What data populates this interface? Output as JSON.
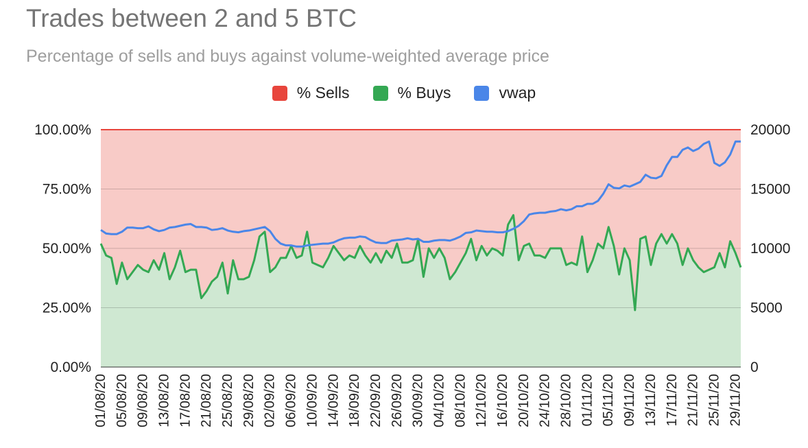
{
  "chart_data": {
    "type": "area",
    "title": "Trades between 2 and 5 BTC",
    "subtitle": "Percentage of sells and buys against volume-weighted average price",
    "legend": {
      "position": "top-center",
      "items": [
        {
          "name": "% Sells",
          "color": "#e8453c"
        },
        {
          "name": "% Buys",
          "color": "#34a853"
        },
        {
          "name": "vwap",
          "color": "#4a86e8"
        }
      ]
    },
    "left_axis": {
      "ylim": [
        0,
        100
      ],
      "ticks": [
        0,
        25,
        50,
        75,
        100
      ],
      "tick_labels": [
        "0.00%",
        "25.00%",
        "50.00%",
        "75.00%",
        "100.00%"
      ]
    },
    "right_axis": {
      "ylim": [
        0,
        20000
      ],
      "ticks": [
        0,
        5000,
        10000,
        15000,
        20000
      ],
      "tick_labels": [
        "0",
        "5000",
        "10000",
        "15000",
        "20000"
      ]
    },
    "grid": true,
    "x_tick_labels": [
      "01/08/20",
      "05/08/20",
      "09/08/20",
      "13/08/20",
      "17/08/20",
      "21/08/20",
      "25/08/20",
      "29/08/20",
      "02/09/20",
      "06/09/20",
      "10/09/20",
      "14/09/20",
      "18/09/20",
      "22/09/20",
      "26/09/20",
      "30/09/20",
      "04/10/20",
      "08/10/20",
      "12/10/20",
      "16/10/20",
      "20/10/20",
      "24/10/20",
      "28/10/20",
      "01/11/20",
      "05/11/20",
      "09/11/20",
      "13/11/20",
      "17/11/20",
      "21/11/20",
      "25/11/20",
      "29/11/20"
    ],
    "dates": [
      "01/08/20",
      "02/08/20",
      "03/08/20",
      "04/08/20",
      "05/08/20",
      "06/08/20",
      "07/08/20",
      "08/08/20",
      "09/08/20",
      "10/08/20",
      "11/08/20",
      "12/08/20",
      "13/08/20",
      "14/08/20",
      "15/08/20",
      "16/08/20",
      "17/08/20",
      "18/08/20",
      "19/08/20",
      "20/08/20",
      "21/08/20",
      "22/08/20",
      "23/08/20",
      "24/08/20",
      "25/08/20",
      "26/08/20",
      "27/08/20",
      "28/08/20",
      "29/08/20",
      "30/08/20",
      "31/08/20",
      "01/09/20",
      "02/09/20",
      "03/09/20",
      "04/09/20",
      "05/09/20",
      "06/09/20",
      "07/09/20",
      "08/09/20",
      "09/09/20",
      "10/09/20",
      "11/09/20",
      "12/09/20",
      "13/09/20",
      "14/09/20",
      "15/09/20",
      "16/09/20",
      "17/09/20",
      "18/09/20",
      "19/09/20",
      "20/09/20",
      "21/09/20",
      "22/09/20",
      "23/09/20",
      "24/09/20",
      "25/09/20",
      "26/09/20",
      "27/09/20",
      "28/09/20",
      "29/09/20",
      "30/09/20",
      "01/10/20",
      "02/10/20",
      "03/10/20",
      "04/10/20",
      "05/10/20",
      "06/10/20",
      "07/10/20",
      "08/10/20",
      "09/10/20",
      "10/10/20",
      "11/10/20",
      "12/10/20",
      "13/10/20",
      "14/10/20",
      "15/10/20",
      "16/10/20",
      "17/10/20",
      "18/10/20",
      "19/10/20",
      "20/10/20",
      "21/10/20",
      "22/10/20",
      "23/10/20",
      "24/10/20",
      "25/10/20",
      "26/10/20",
      "27/10/20",
      "28/10/20",
      "29/10/20",
      "30/10/20",
      "31/10/20",
      "01/11/20",
      "02/11/20",
      "03/11/20",
      "04/11/20",
      "05/11/20",
      "06/11/20",
      "07/11/20",
      "08/11/20",
      "09/11/20",
      "10/11/20",
      "11/11/20",
      "12/11/20",
      "13/11/20",
      "14/11/20",
      "15/11/20",
      "16/11/20",
      "17/11/20",
      "18/11/20",
      "19/11/20",
      "20/11/20",
      "21/11/20",
      "22/11/20",
      "23/11/20",
      "24/11/20",
      "25/11/20",
      "26/11/20",
      "27/11/20",
      "28/11/20",
      "29/11/20",
      "30/11/20"
    ],
    "series": [
      {
        "name": "% Buys",
        "axis": "left",
        "values": [
          52,
          47,
          46,
          35,
          44,
          37,
          40,
          43,
          41,
          40,
          45,
          41,
          48,
          37,
          42,
          49,
          40,
          41,
          41,
          29,
          32,
          36,
          38,
          44,
          31,
          45,
          37,
          37,
          38,
          45,
          55,
          57,
          40,
          42,
          46,
          46,
          51,
          46,
          47,
          57,
          44,
          43,
          42,
          46,
          51,
          48,
          45,
          47,
          46,
          51,
          47,
          44,
          48,
          44,
          49,
          46,
          52,
          44,
          44,
          45,
          54,
          38,
          50,
          46,
          50,
          46,
          37,
          40,
          44,
          48,
          54,
          45,
          51,
          47,
          50,
          49,
          47,
          60,
          64,
          45,
          51,
          52,
          47,
          47,
          46,
          50,
          50,
          50,
          43,
          44,
          43,
          55,
          40,
          45,
          52,
          50,
          59,
          51,
          39,
          50,
          45,
          24,
          54,
          55,
          43,
          52,
          56,
          52,
          56,
          52,
          43,
          50,
          45,
          42,
          40,
          41,
          42,
          48,
          42,
          53,
          48,
          42
        ]
      },
      {
        "name": "% Sells",
        "axis": "left",
        "values": [
          48,
          53,
          54,
          65,
          56,
          63,
          60,
          57,
          59,
          60,
          55,
          59,
          52,
          63,
          58,
          51,
          60,
          59,
          59,
          71,
          68,
          64,
          62,
          56,
          69,
          55,
          63,
          63,
          62,
          55,
          45,
          43,
          60,
          58,
          54,
          54,
          49,
          54,
          53,
          43,
          56,
          57,
          58,
          54,
          49,
          52,
          55,
          53,
          54,
          49,
          53,
          56,
          52,
          56,
          51,
          54,
          48,
          56,
          56,
          55,
          46,
          62,
          50,
          54,
          50,
          54,
          63,
          60,
          56,
          52,
          46,
          55,
          49,
          53,
          50,
          51,
          53,
          40,
          36,
          55,
          49,
          48,
          53,
          53,
          54,
          50,
          50,
          50,
          57,
          56,
          57,
          45,
          60,
          55,
          48,
          50,
          41,
          49,
          61,
          50,
          55,
          76,
          46,
          45,
          57,
          48,
          44,
          48,
          44,
          48,
          57,
          50,
          55,
          58,
          60,
          59,
          58,
          52,
          58,
          47,
          52,
          58
        ]
      },
      {
        "name": "vwap",
        "axis": "right",
        "values": [
          11550,
          11250,
          11200,
          11200,
          11400,
          11750,
          11750,
          11700,
          11700,
          11850,
          11600,
          11450,
          11550,
          11750,
          11800,
          11900,
          12000,
          12050,
          11800,
          11800,
          11750,
          11550,
          11600,
          11700,
          11500,
          11400,
          11350,
          11450,
          11500,
          11600,
          11700,
          11800,
          11450,
          10800,
          10400,
          10250,
          10250,
          10150,
          10150,
          10250,
          10300,
          10350,
          10400,
          10400,
          10500,
          10700,
          10850,
          10900,
          10900,
          11000,
          10950,
          10700,
          10500,
          10450,
          10450,
          10650,
          10700,
          10750,
          10850,
          10750,
          10800,
          10550,
          10550,
          10650,
          10700,
          10700,
          10650,
          10800,
          11000,
          11300,
          11350,
          11500,
          11450,
          11400,
          11400,
          11350,
          11350,
          11450,
          11650,
          11900,
          12300,
          12850,
          12950,
          13000,
          13000,
          13100,
          13150,
          13300,
          13200,
          13300,
          13550,
          13550,
          13750,
          13750,
          14000,
          14600,
          15400,
          15100,
          15050,
          15300,
          15200,
          15400,
          15600,
          16200,
          15950,
          15900,
          16100,
          17000,
          17700,
          17700,
          18300,
          18500,
          18200,
          18400,
          18800,
          19000,
          17200,
          16950,
          17250,
          17900,
          19000,
          19000
        ]
      }
    ]
  }
}
